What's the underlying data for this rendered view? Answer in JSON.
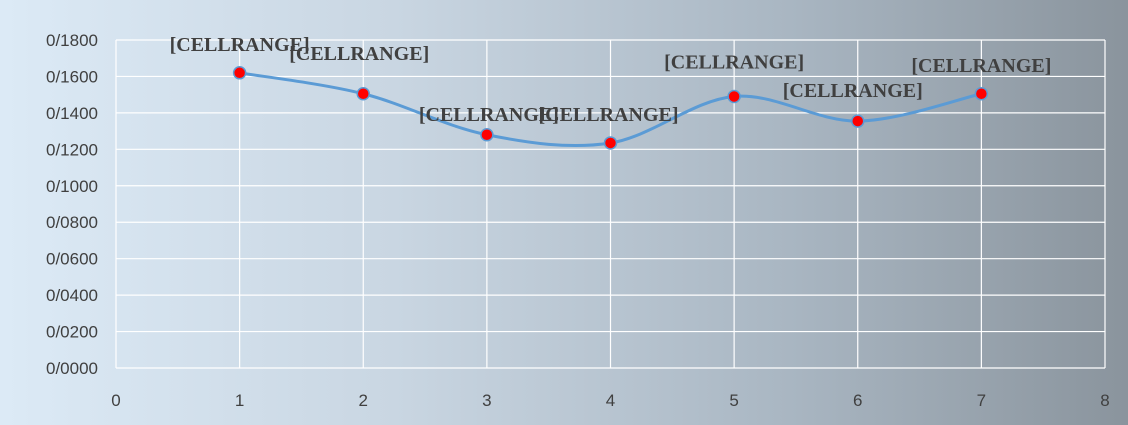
{
  "chart_data": {
    "type": "scatter",
    "style": "smooth line with markers",
    "x": [
      1,
      2,
      3,
      4,
      5,
      6,
      7
    ],
    "y": [
      0.162,
      0.1505,
      0.128,
      0.1235,
      0.149,
      0.1355,
      0.1505
    ],
    "y_tick_labels": [
      "0/0000",
      "0/0200",
      "0/0400",
      "0/0600",
      "0/0800",
      "0/1000",
      "0/1200",
      "0/1400",
      "0/1600",
      "0/1800"
    ],
    "x_tick_labels": [
      "0",
      "1",
      "2",
      "3",
      "4",
      "5",
      "6",
      "7",
      "8"
    ],
    "data_labels": [
      "[CELLRANGE]",
      "[CELLRANGE]",
      "[CELLRANGE]",
      "[CELLRANGE]",
      "[CELLRANGE]",
      "[CELLRANGE]",
      "[CELLRANGE]"
    ],
    "xlim": [
      0,
      8
    ],
    "ylim": [
      0,
      0.18
    ],
    "grid": true,
    "line_color": "#5b9bd5",
    "marker_color": "#ff0000",
    "background": "blue-grey gradient"
  }
}
